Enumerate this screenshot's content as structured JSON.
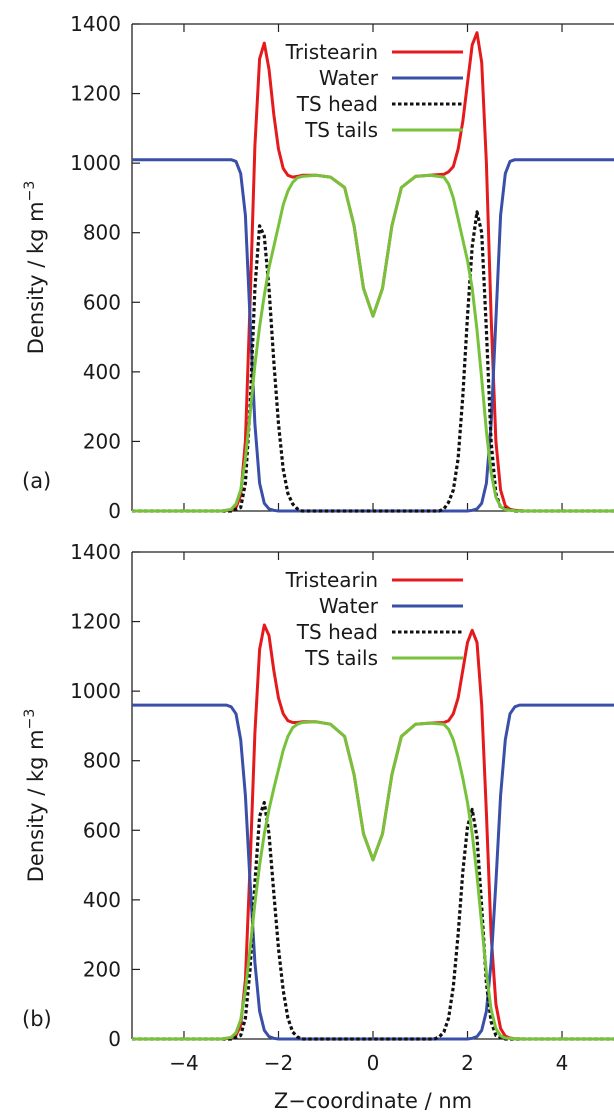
{
  "chart_data": [
    {
      "type": "line",
      "panel_label": "(a)",
      "xlabel": "",
      "ylabel": "Density / kg m",
      "ylabel_superscript": "−3",
      "xlim": [
        -5.1,
        5.1
      ],
      "ylim": [
        0,
        1400
      ],
      "xticks": [
        -4,
        -2,
        0,
        2,
        4
      ],
      "yticks": [
        0,
        200,
        400,
        600,
        800,
        1000,
        1200,
        1400
      ],
      "show_x_tick_labels": false,
      "grid": false,
      "legend_position": "top-center",
      "series": [
        {
          "name": "Tristearin",
          "color": "#e41a1c",
          "dash": "solid",
          "x": [
            -5.1,
            -3.2,
            -3.0,
            -2.9,
            -2.8,
            -2.7,
            -2.6,
            -2.5,
            -2.4,
            -2.3,
            -2.2,
            -2.1,
            -2.0,
            -1.9,
            -1.8,
            -1.7,
            -1.6,
            -1.5,
            -1.2,
            -0.9,
            -0.6,
            -0.4,
            -0.2,
            0.0,
            0.2,
            0.4,
            0.6,
            0.9,
            1.2,
            1.5,
            1.6,
            1.7,
            1.8,
            1.9,
            2.0,
            2.1,
            2.2,
            2.3,
            2.4,
            2.5,
            2.6,
            2.7,
            2.8,
            2.9,
            3.0,
            3.2,
            5.1
          ],
          "y": [
            0,
            0,
            3,
            10,
            45,
            200,
            600,
            1050,
            1300,
            1345,
            1270,
            1140,
            1040,
            985,
            965,
            960,
            962,
            965,
            965,
            960,
            930,
            820,
            640,
            560,
            640,
            820,
            930,
            962,
            965,
            968,
            975,
            990,
            1040,
            1120,
            1230,
            1340,
            1375,
            1290,
            1000,
            560,
            200,
            60,
            15,
            5,
            2,
            0,
            0
          ]
        },
        {
          "name": "Water",
          "color": "#3a4fa8",
          "dash": "solid",
          "x": [
            -5.1,
            -3.0,
            -2.9,
            -2.8,
            -2.7,
            -2.6,
            -2.5,
            -2.4,
            -2.3,
            -2.2,
            -2.1,
            -2.0,
            2.0,
            2.1,
            2.2,
            2.3,
            2.4,
            2.5,
            2.6,
            2.7,
            2.8,
            2.9,
            3.0,
            5.1
          ],
          "y": [
            1010,
            1010,
            1005,
            970,
            850,
            550,
            250,
            80,
            22,
            6,
            2,
            0,
            0,
            2,
            6,
            22,
            80,
            250,
            550,
            850,
            970,
            1005,
            1010,
            1010
          ]
        },
        {
          "name": "TS head",
          "color": "#111111",
          "dash": "dotted",
          "x": [
            -5.1,
            -3.0,
            -2.8,
            -2.7,
            -2.6,
            -2.5,
            -2.4,
            -2.3,
            -2.2,
            -2.1,
            -2.0,
            -1.9,
            -1.8,
            -1.7,
            -1.6,
            -1.5,
            1.4,
            1.5,
            1.6,
            1.7,
            1.8,
            1.9,
            2.0,
            2.1,
            2.2,
            2.3,
            2.4,
            2.5,
            2.6,
            2.7,
            3.0,
            5.1
          ],
          "y": [
            0,
            0,
            10,
            80,
            300,
            640,
            820,
            790,
            640,
            430,
            250,
            120,
            50,
            20,
            6,
            0,
            0,
            6,
            25,
            60,
            150,
            330,
            560,
            760,
            860,
            800,
            520,
            200,
            50,
            10,
            0,
            0
          ]
        },
        {
          "name": "TS tails",
          "color": "#77c23b",
          "dash": "solid",
          "x": [
            -5.1,
            -3.2,
            -3.0,
            -2.9,
            -2.8,
            -2.7,
            -2.6,
            -2.5,
            -2.4,
            -2.3,
            -2.2,
            -2.1,
            -2.0,
            -1.9,
            -1.8,
            -1.7,
            -1.6,
            -1.5,
            -1.2,
            -0.9,
            -0.6,
            -0.4,
            -0.2,
            0.0,
            0.2,
            0.4,
            0.6,
            0.9,
            1.2,
            1.5,
            1.6,
            1.7,
            1.8,
            1.9,
            2.0,
            2.1,
            2.2,
            2.3,
            2.4,
            2.5,
            2.6,
            2.7,
            2.8,
            3.0,
            3.2,
            5.1
          ],
          "y": [
            0,
            0,
            5,
            20,
            60,
            150,
            280,
            420,
            530,
            620,
            700,
            760,
            820,
            880,
            920,
            945,
            958,
            962,
            965,
            960,
            930,
            820,
            640,
            560,
            640,
            820,
            930,
            962,
            965,
            960,
            940,
            900,
            840,
            780,
            720,
            640,
            520,
            380,
            230,
            110,
            40,
            12,
            4,
            1,
            0,
            0
          ]
        }
      ]
    },
    {
      "type": "line",
      "panel_label": "(b)",
      "xlabel": "Z−coordinate / nm",
      "ylabel": "Density / kg m",
      "ylabel_superscript": "−3",
      "xlim": [
        -5.1,
        5.1
      ],
      "ylim": [
        0,
        1400
      ],
      "xticks": [
        -4,
        -2,
        0,
        2,
        4
      ],
      "yticks": [
        0,
        200,
        400,
        600,
        800,
        1000,
        1200,
        1400
      ],
      "show_x_tick_labels": true,
      "grid": false,
      "legend_position": "top-center",
      "series": [
        {
          "name": "Tristearin",
          "color": "#e41a1c",
          "dash": "solid",
          "x": [
            -5.1,
            -3.2,
            -3.0,
            -2.9,
            -2.8,
            -2.7,
            -2.6,
            -2.5,
            -2.4,
            -2.3,
            -2.2,
            -2.1,
            -2.0,
            -1.9,
            -1.8,
            -1.7,
            -1.6,
            -1.5,
            -1.2,
            -0.9,
            -0.6,
            -0.4,
            -0.2,
            0.0,
            0.2,
            0.4,
            0.6,
            0.9,
            1.2,
            1.5,
            1.6,
            1.7,
            1.8,
            1.9,
            2.0,
            2.1,
            2.2,
            2.3,
            2.4,
            2.5,
            2.6,
            2.7,
            2.8,
            2.9,
            3.0,
            3.2,
            5.1
          ],
          "y": [
            0,
            0,
            3,
            10,
            40,
            170,
            500,
            880,
            1120,
            1190,
            1160,
            1060,
            980,
            935,
            915,
            910,
            910,
            912,
            912,
            905,
            870,
            760,
            590,
            515,
            590,
            760,
            870,
            905,
            908,
            910,
            915,
            935,
            980,
            1060,
            1140,
            1175,
            1140,
            960,
            650,
            300,
            100,
            30,
            8,
            3,
            1,
            0,
            0
          ]
        },
        {
          "name": "Water",
          "color": "#3a4fa8",
          "dash": "solid",
          "x": [
            -5.1,
            -3.1,
            -3.0,
            -2.9,
            -2.8,
            -2.7,
            -2.6,
            -2.5,
            -2.4,
            -2.3,
            -2.2,
            -2.1,
            -2.0,
            2.0,
            2.1,
            2.2,
            2.3,
            2.4,
            2.5,
            2.6,
            2.7,
            2.8,
            2.9,
            3.0,
            3.1,
            5.1
          ],
          "y": [
            960,
            960,
            955,
            935,
            860,
            700,
            450,
            220,
            80,
            25,
            7,
            2,
            0,
            0,
            2,
            7,
            25,
            80,
            220,
            450,
            700,
            860,
            935,
            955,
            960,
            960
          ]
        },
        {
          "name": "TS head",
          "color": "#111111",
          "dash": "dotted",
          "x": [
            -5.1,
            -3.0,
            -2.8,
            -2.7,
            -2.6,
            -2.5,
            -2.4,
            -2.3,
            -2.2,
            -2.1,
            -2.0,
            -1.9,
            -1.8,
            -1.7,
            -1.6,
            -1.5,
            1.3,
            1.4,
            1.5,
            1.6,
            1.7,
            1.8,
            1.9,
            2.0,
            2.1,
            2.2,
            2.3,
            2.4,
            2.5,
            2.6,
            2.8,
            5.1
          ],
          "y": [
            0,
            0,
            10,
            60,
            200,
            450,
            640,
            680,
            590,
            420,
            260,
            140,
            60,
            20,
            6,
            0,
            0,
            6,
            20,
            60,
            150,
            300,
            480,
            610,
            660,
            580,
            380,
            160,
            50,
            10,
            0,
            0
          ]
        },
        {
          "name": "TS tails",
          "color": "#77c23b",
          "dash": "solid",
          "x": [
            -5.1,
            -3.2,
            -3.0,
            -2.9,
            -2.8,
            -2.7,
            -2.6,
            -2.5,
            -2.4,
            -2.3,
            -2.2,
            -2.1,
            -2.0,
            -1.9,
            -1.8,
            -1.7,
            -1.6,
            -1.5,
            -1.2,
            -0.9,
            -0.6,
            -0.4,
            -0.2,
            0.0,
            0.2,
            0.4,
            0.6,
            0.9,
            1.2,
            1.5,
            1.6,
            1.7,
            1.8,
            1.9,
            2.0,
            2.1,
            2.2,
            2.3,
            2.4,
            2.5,
            2.6,
            2.7,
            2.8,
            3.0,
            3.2,
            5.1
          ],
          "y": [
            0,
            0,
            5,
            18,
            55,
            140,
            260,
            390,
            500,
            590,
            660,
            720,
            775,
            830,
            870,
            895,
            905,
            910,
            912,
            905,
            870,
            760,
            590,
            515,
            590,
            760,
            870,
            905,
            908,
            905,
            890,
            860,
            810,
            750,
            680,
            590,
            470,
            330,
            190,
            85,
            30,
            9,
            3,
            1,
            0,
            0
          ]
        }
      ]
    }
  ]
}
